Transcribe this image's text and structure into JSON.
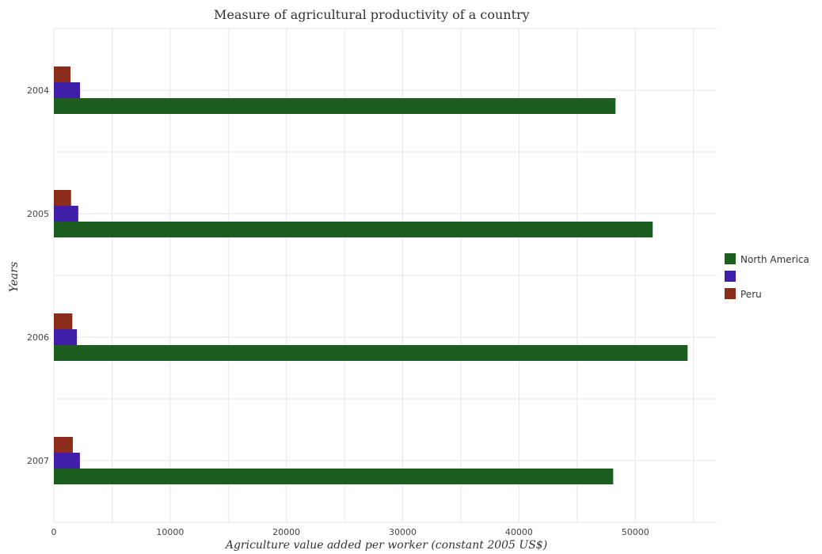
{
  "chart_data": {
    "type": "bar",
    "orientation": "horizontal",
    "title": "Measure of agricultural productivity of a country",
    "xlabel": "Agriculture value added per worker (constant 2005 US$)",
    "ylabel": "Years",
    "categories": [
      "2004",
      "2005",
      "2006",
      "2007"
    ],
    "xlim": [
      0,
      57000
    ],
    "xticks": [
      0,
      10000,
      20000,
      30000,
      40000,
      50000
    ],
    "xtick_labels": [
      "0",
      "10000",
      "20000",
      "30000",
      "40000",
      "50000"
    ],
    "grid": true,
    "legend_position": "right",
    "series": [
      {
        "name": "North America",
        "color": "#1b5e20",
        "values": [
          48300,
          51500,
          54500,
          48100
        ]
      },
      {
        "name": "",
        "color": "#3f1fa8",
        "values": [
          2250,
          2100,
          1980,
          2240
        ]
      },
      {
        "name": "Peru",
        "color": "#8b2d1a",
        "values": [
          1430,
          1480,
          1590,
          1630
        ]
      }
    ]
  }
}
